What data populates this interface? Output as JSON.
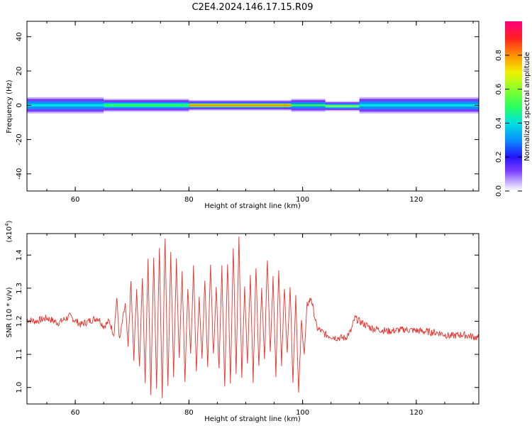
{
  "figure": {
    "title": "C2E4.2024.146.17.15.R09"
  },
  "chart_data": [
    {
      "type": "heatmap",
      "xlabel": "Height of straight line (km)",
      "ylabel": "Frequency (Hz)",
      "xlim": [
        51.5,
        131
      ],
      "ylim": [
        -50,
        49
      ],
      "xticks": [
        60,
        80,
        100,
        120
      ],
      "yticks": [
        -40,
        -20,
        0,
        20,
        40
      ],
      "colorbar": {
        "label": "Normalized spectral amplitude",
        "range": [
          0,
          1
        ],
        "ticks": [
          "0.0",
          "0.2",
          "0.4",
          "0.6",
          "0.8"
        ],
        "tick_values": [
          0.0,
          0.2,
          0.4,
          0.6,
          0.8
        ],
        "colormap": [
          "#ffffff",
          "#c6b2ff",
          "#7a3cff",
          "#2414ff",
          "#0a90ff",
          "#00e0e0",
          "#2bff5a",
          "#8aff2a",
          "#f0f000",
          "#ff9000",
          "#ff2020",
          "#ff0080"
        ]
      },
      "band": {
        "description_key": "energy concentrated near 0 Hz across all heights",
        "segments": [
          {
            "x": [
              51.5,
              65
            ],
            "amplitude": 0.45,
            "half_width_hz": 2.5
          },
          {
            "x": [
              65,
              80
            ],
            "amplitude": 0.55,
            "half_width_hz": 2.0
          },
          {
            "x": [
              80,
              98
            ],
            "amplitude": 0.85,
            "half_width_hz": 1.6
          },
          {
            "x": [
              98,
              104
            ],
            "amplitude": 0.5,
            "half_width_hz": 2.0
          },
          {
            "x": [
              104,
              110
            ],
            "amplitude": 0.6,
            "half_width_hz": 1.5,
            "center_hz": -0.5
          },
          {
            "x": [
              110,
              131
            ],
            "amplitude": 0.45,
            "half_width_hz": 2.5
          }
        ]
      }
    },
    {
      "type": "line",
      "xlabel": "Height of straight line (km)",
      "ylabel": "SNR (10 * v/v)",
      "yscale_label": "(x10",
      "yscale_exp": "4",
      "yscale_close": ")",
      "xlim": [
        51.5,
        131
      ],
      "ylim": [
        0.95,
        1.465
      ],
      "xticks": [
        60,
        80,
        100,
        120
      ],
      "yticks": [
        1.0,
        1.1,
        1.2,
        1.3,
        1.4
      ],
      "ytick_labels": [
        "1.0",
        "1.1",
        "1.2",
        "1.3",
        "1.4"
      ],
      "series": [
        {
          "color": "#e8322c",
          "x": [
            51.5,
            53,
            55,
            57,
            59,
            61,
            63,
            64,
            65,
            66,
            66.8,
            67.3,
            67.8,
            68.3,
            68.8,
            69.3,
            69.8,
            70.3,
            70.8,
            71.3,
            71.8,
            72.3,
            72.8,
            73.3,
            73.8,
            74.3,
            74.8,
            75.3,
            75.8,
            76.3,
            76.8,
            77.3,
            77.8,
            78.3,
            78.8,
            79.3,
            79.8,
            80.3,
            80.8,
            81.3,
            81.8,
            82.3,
            82.8,
            83.3,
            83.8,
            84.3,
            84.8,
            85.3,
            85.8,
            86.3,
            86.8,
            87.3,
            87.8,
            88.3,
            88.8,
            89.3,
            89.8,
            90.3,
            90.8,
            91.3,
            91.8,
            92.3,
            92.8,
            93.3,
            93.8,
            94.3,
            94.8,
            95.3,
            95.8,
            96.3,
            96.8,
            97.3,
            97.8,
            98.3,
            98.8,
            99.3,
            99.8,
            100.3,
            100.8,
            101.5,
            102.5,
            104,
            106,
            107.5,
            108.5,
            109.2,
            110,
            112,
            115,
            118,
            121,
            124,
            126,
            128,
            131
          ],
          "values": [
            1.205,
            1.2,
            1.21,
            1.195,
            1.215,
            1.19,
            1.205,
            1.21,
            1.185,
            1.2,
            1.16,
            1.27,
            1.14,
            1.2,
            1.25,
            1.12,
            1.32,
            1.08,
            1.3,
            1.06,
            1.34,
            1.02,
            1.38,
            0.98,
            1.4,
            1.0,
            1.42,
            0.97,
            1.46,
            1.0,
            1.4,
            1.04,
            1.38,
            1.08,
            1.35,
            1.02,
            1.3,
            1.1,
            1.36,
            1.05,
            1.28,
            1.08,
            1.33,
            1.06,
            1.38,
            1.1,
            1.3,
            1.05,
            1.36,
            1.0,
            1.38,
            1.02,
            1.42,
            1.05,
            1.46,
            1.03,
            1.3,
            1.07,
            1.34,
            1.02,
            1.37,
            1.06,
            1.3,
            1.08,
            1.39,
            1.1,
            1.33,
            1.04,
            1.36,
            1.07,
            1.3,
            1.1,
            1.31,
            1.02,
            1.28,
            0.98,
            1.2,
            1.1,
            1.25,
            1.27,
            1.18,
            1.16,
            1.15,
            1.15,
            1.17,
            1.21,
            1.2,
            1.18,
            1.17,
            1.175,
            1.17,
            1.165,
            1.155,
            1.16,
            1.15
          ]
        }
      ]
    }
  ]
}
